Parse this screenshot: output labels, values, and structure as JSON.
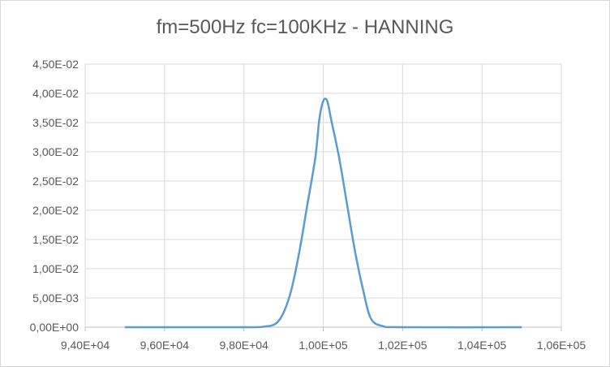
{
  "chart_data": {
    "type": "line",
    "title": "fm=500Hz fc=100KHz - HANNING",
    "xlabel": "",
    "ylabel": "",
    "xlim": [
      94000,
      106000
    ],
    "ylim": [
      0,
      0.045
    ],
    "grid": true,
    "legend": "none",
    "x_tick_values": [
      94000,
      96000,
      98000,
      100000,
      102000,
      104000,
      106000
    ],
    "x_tick_labels": [
      "9,40E+04",
      "9,60E+04",
      "9,80E+04",
      "1,00E+05",
      "1,02E+05",
      "1,04E+05",
      "1,06E+05"
    ],
    "y_tick_values": [
      0,
      0.005,
      0.01,
      0.015,
      0.02,
      0.025,
      0.03,
      0.035,
      0.04,
      0.045
    ],
    "y_tick_labels": [
      "0,00E+00",
      "5,00E-03",
      "1,00E-02",
      "1,50E-02",
      "2,00E-02",
      "2,50E-02",
      "3,00E-02",
      "3,50E-02",
      "4,00E-02",
      "4,50E-02"
    ],
    "series": [
      {
        "color": "#5b9bd5",
        "x": [
          95000,
          98000,
          98500,
          98800,
          99000,
          99200,
          99400,
          99600,
          99800,
          99900,
          100000,
          100100,
          100200,
          100400,
          100600,
          100800,
          101000,
          101200,
          101500,
          102000,
          105000
        ],
        "y": [
          0,
          0,
          0.0001,
          0.0006,
          0.0025,
          0.0065,
          0.013,
          0.021,
          0.029,
          0.0355,
          0.0387,
          0.0387,
          0.0355,
          0.029,
          0.021,
          0.013,
          0.0065,
          0.0015,
          0.0002,
          0,
          0
        ]
      }
    ]
  }
}
